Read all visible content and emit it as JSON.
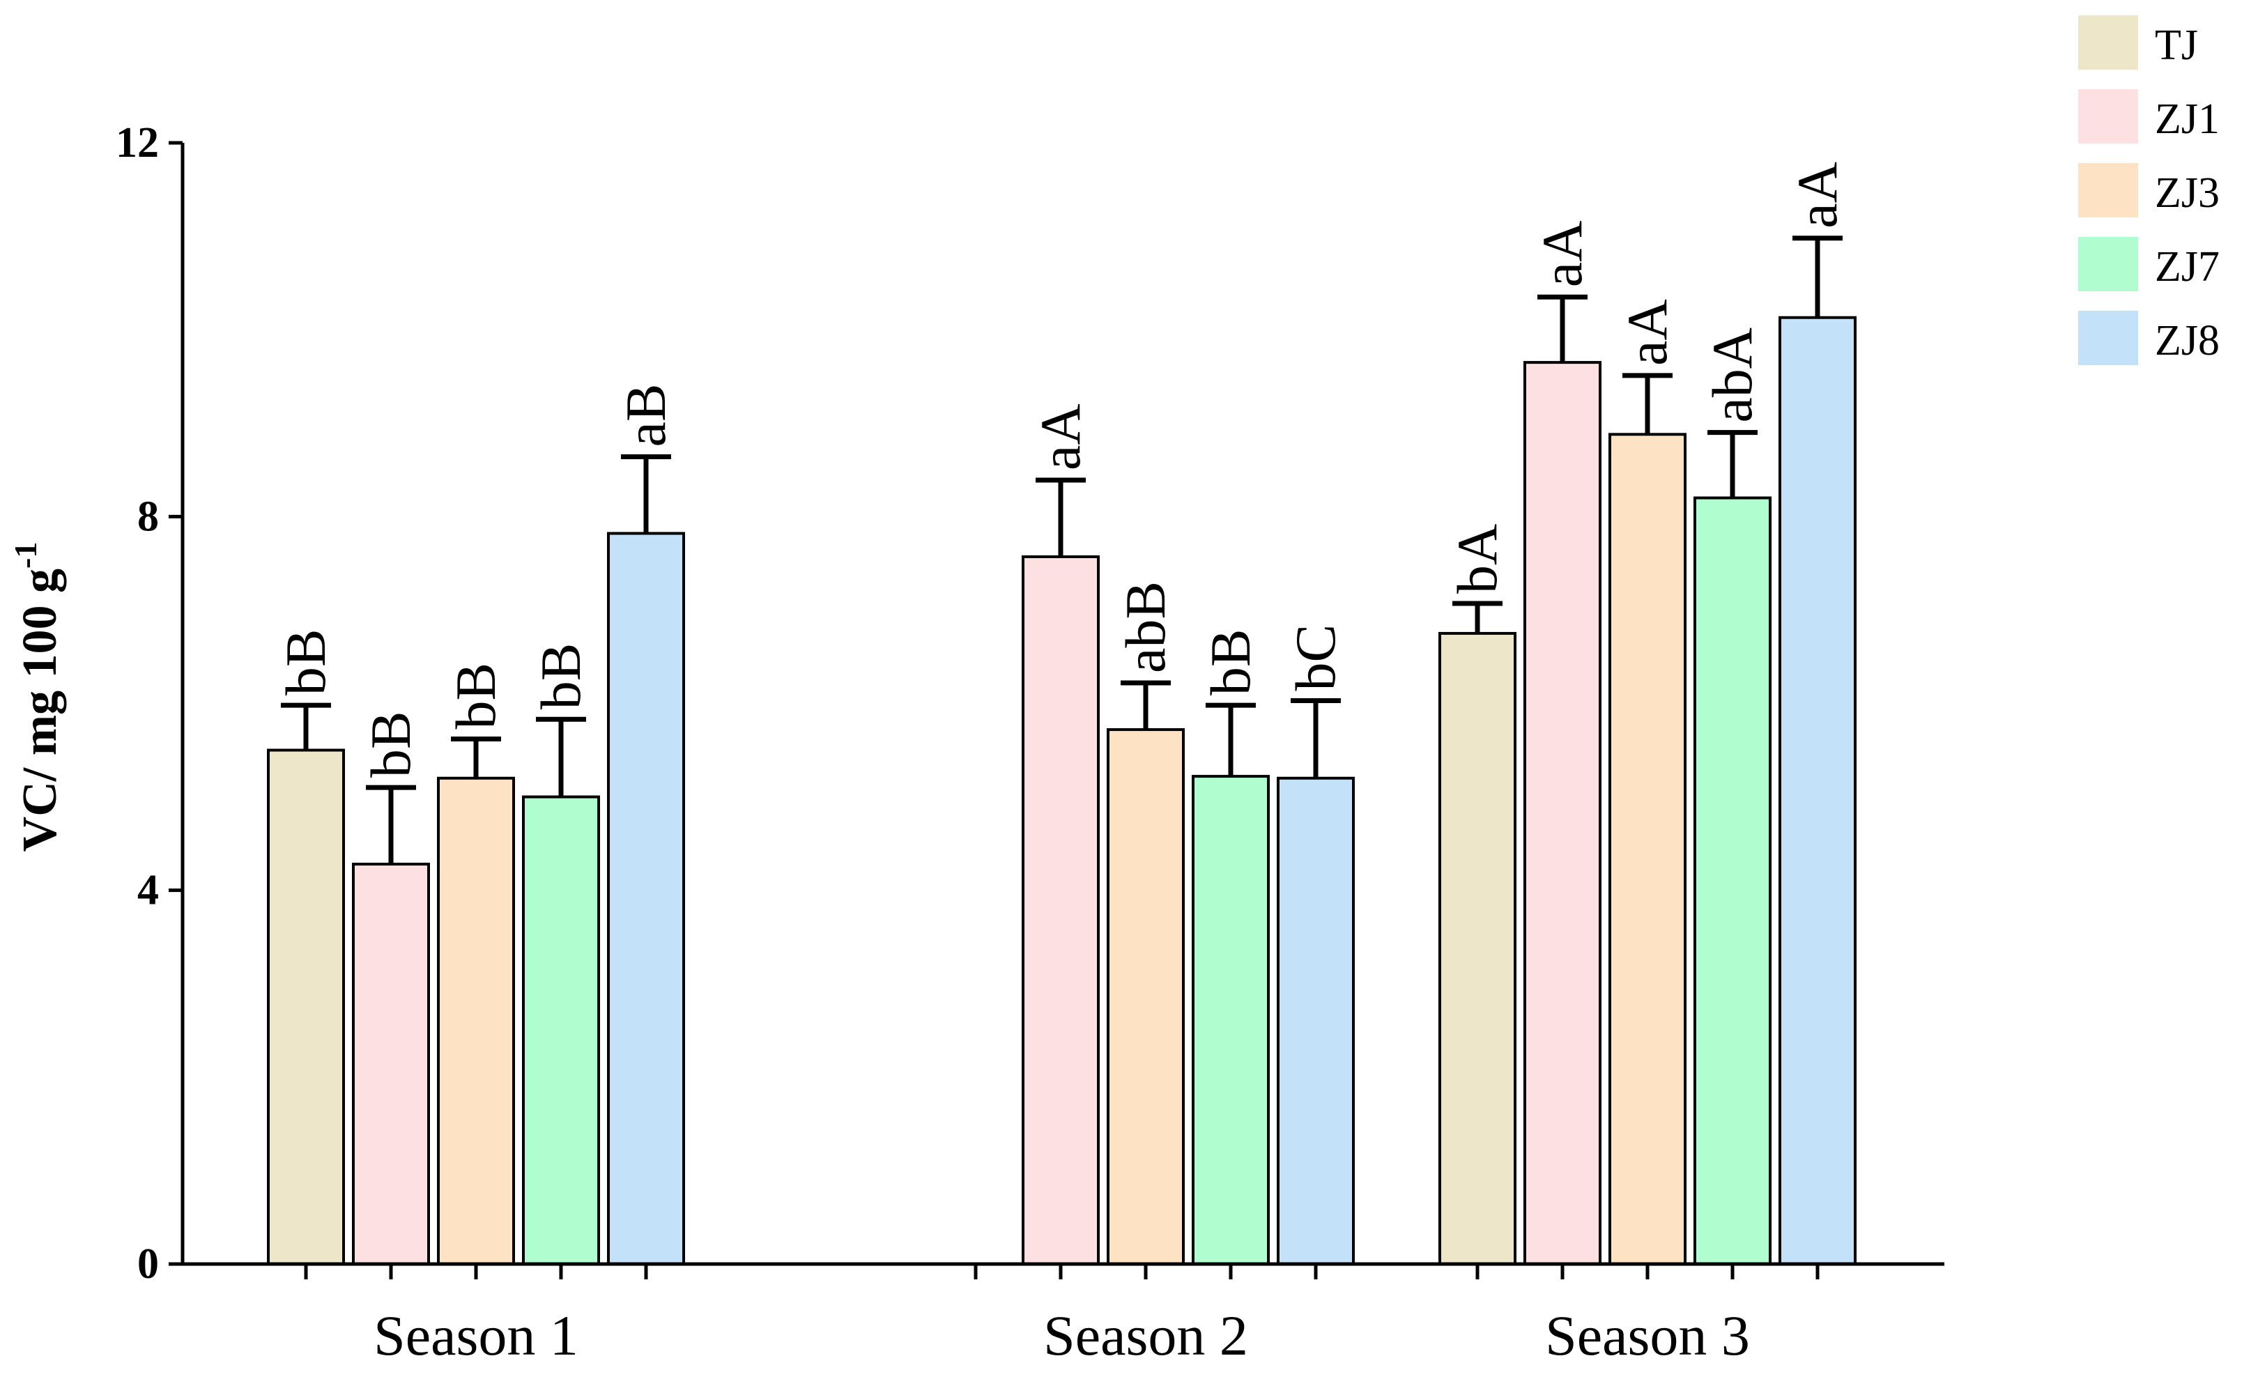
{
  "chart_data": {
    "type": "bar",
    "title": "",
    "xlabel": "",
    "ylabel": {
      "prefix": "VC/ mg 100 g",
      "superscript": "-1"
    },
    "ylim": [
      0,
      12
    ],
    "yticks": [
      0,
      4,
      8,
      12
    ],
    "grid": false,
    "legend_position": "top-right",
    "categories": [
      "Season 1",
      "Season 2",
      "Season 3"
    ],
    "series": [
      {
        "name": "TJ",
        "color": "#ede6c9",
        "values": [
          5.5,
          null,
          6.75
        ],
        "errors": [
          0.48,
          null,
          0.32
        ],
        "labels": [
          "bB",
          "",
          "bA"
        ]
      },
      {
        "name": "ZJ1",
        "color": "#fde0e2",
        "values": [
          4.28,
          7.57,
          9.65
        ],
        "errors": [
          0.82,
          0.82,
          0.7
        ],
        "labels": [
          "bB",
          "aA",
          "aA"
        ]
      },
      {
        "name": "ZJ3",
        "color": "#fde2c4",
        "values": [
          5.2,
          5.72,
          8.88
        ],
        "errors": [
          0.42,
          0.5,
          0.63
        ],
        "labels": [
          "bB",
          "abB",
          "aA"
        ]
      },
      {
        "name": "ZJ7",
        "color": "#b0fdcf",
        "values": [
          5.0,
          5.22,
          8.2
        ],
        "errors": [
          0.83,
          0.76,
          0.7
        ],
        "labels": [
          "bB",
          "bB",
          "abA"
        ]
      },
      {
        "name": "ZJ8",
        "color": "#c4e1fa",
        "values": [
          7.82,
          5.2,
          10.13
        ],
        "errors": [
          0.82,
          0.83,
          0.85
        ],
        "labels": [
          "aB",
          "bC",
          "aA"
        ]
      }
    ]
  }
}
